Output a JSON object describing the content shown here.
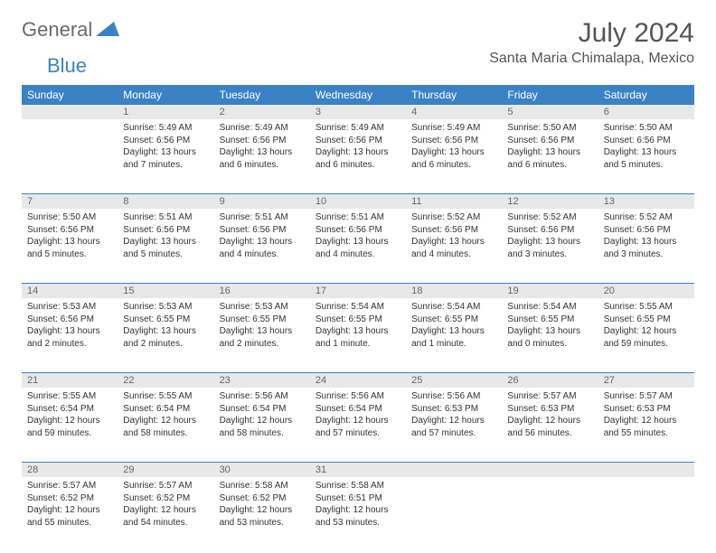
{
  "logo": {
    "text1": "General",
    "text2": "Blue"
  },
  "title": "July 2024",
  "location": "Santa Maria Chimalapa, Mexico",
  "colors": {
    "header_bg": "#3b82c4",
    "header_text": "#ffffff",
    "daynum_bg": "#e8e8e8",
    "daynum_text": "#666666",
    "body_text": "#333333",
    "logo_gray": "#6a6a6a",
    "logo_blue": "#3b82c4"
  },
  "weekdays": [
    "Sunday",
    "Monday",
    "Tuesday",
    "Wednesday",
    "Thursday",
    "Friday",
    "Saturday"
  ],
  "weeks": [
    {
      "nums": [
        "",
        "1",
        "2",
        "3",
        "4",
        "5",
        "6"
      ],
      "cells": [
        null,
        {
          "sunrise": "5:49 AM",
          "sunset": "6:56 PM",
          "daylight": "13 hours and 7 minutes."
        },
        {
          "sunrise": "5:49 AM",
          "sunset": "6:56 PM",
          "daylight": "13 hours and 6 minutes."
        },
        {
          "sunrise": "5:49 AM",
          "sunset": "6:56 PM",
          "daylight": "13 hours and 6 minutes."
        },
        {
          "sunrise": "5:49 AM",
          "sunset": "6:56 PM",
          "daylight": "13 hours and 6 minutes."
        },
        {
          "sunrise": "5:50 AM",
          "sunset": "6:56 PM",
          "daylight": "13 hours and 6 minutes."
        },
        {
          "sunrise": "5:50 AM",
          "sunset": "6:56 PM",
          "daylight": "13 hours and 5 minutes."
        }
      ]
    },
    {
      "nums": [
        "7",
        "8",
        "9",
        "10",
        "11",
        "12",
        "13"
      ],
      "cells": [
        {
          "sunrise": "5:50 AM",
          "sunset": "6:56 PM",
          "daylight": "13 hours and 5 minutes."
        },
        {
          "sunrise": "5:51 AM",
          "sunset": "6:56 PM",
          "daylight": "13 hours and 5 minutes."
        },
        {
          "sunrise": "5:51 AM",
          "sunset": "6:56 PM",
          "daylight": "13 hours and 4 minutes."
        },
        {
          "sunrise": "5:51 AM",
          "sunset": "6:56 PM",
          "daylight": "13 hours and 4 minutes."
        },
        {
          "sunrise": "5:52 AM",
          "sunset": "6:56 PM",
          "daylight": "13 hours and 4 minutes."
        },
        {
          "sunrise": "5:52 AM",
          "sunset": "6:56 PM",
          "daylight": "13 hours and 3 minutes."
        },
        {
          "sunrise": "5:52 AM",
          "sunset": "6:56 PM",
          "daylight": "13 hours and 3 minutes."
        }
      ]
    },
    {
      "nums": [
        "14",
        "15",
        "16",
        "17",
        "18",
        "19",
        "20"
      ],
      "cells": [
        {
          "sunrise": "5:53 AM",
          "sunset": "6:56 PM",
          "daylight": "13 hours and 2 minutes."
        },
        {
          "sunrise": "5:53 AM",
          "sunset": "6:55 PM",
          "daylight": "13 hours and 2 minutes."
        },
        {
          "sunrise": "5:53 AM",
          "sunset": "6:55 PM",
          "daylight": "13 hours and 2 minutes."
        },
        {
          "sunrise": "5:54 AM",
          "sunset": "6:55 PM",
          "daylight": "13 hours and 1 minute."
        },
        {
          "sunrise": "5:54 AM",
          "sunset": "6:55 PM",
          "daylight": "13 hours and 1 minute."
        },
        {
          "sunrise": "5:54 AM",
          "sunset": "6:55 PM",
          "daylight": "13 hours and 0 minutes."
        },
        {
          "sunrise": "5:55 AM",
          "sunset": "6:55 PM",
          "daylight": "12 hours and 59 minutes."
        }
      ]
    },
    {
      "nums": [
        "21",
        "22",
        "23",
        "24",
        "25",
        "26",
        "27"
      ],
      "cells": [
        {
          "sunrise": "5:55 AM",
          "sunset": "6:54 PM",
          "daylight": "12 hours and 59 minutes."
        },
        {
          "sunrise": "5:55 AM",
          "sunset": "6:54 PM",
          "daylight": "12 hours and 58 minutes."
        },
        {
          "sunrise": "5:56 AM",
          "sunset": "6:54 PM",
          "daylight": "12 hours and 58 minutes."
        },
        {
          "sunrise": "5:56 AM",
          "sunset": "6:54 PM",
          "daylight": "12 hours and 57 minutes."
        },
        {
          "sunrise": "5:56 AM",
          "sunset": "6:53 PM",
          "daylight": "12 hours and 57 minutes."
        },
        {
          "sunrise": "5:57 AM",
          "sunset": "6:53 PM",
          "daylight": "12 hours and 56 minutes."
        },
        {
          "sunrise": "5:57 AM",
          "sunset": "6:53 PM",
          "daylight": "12 hours and 55 minutes."
        }
      ]
    },
    {
      "nums": [
        "28",
        "29",
        "30",
        "31",
        "",
        "",
        ""
      ],
      "cells": [
        {
          "sunrise": "5:57 AM",
          "sunset": "6:52 PM",
          "daylight": "12 hours and 55 minutes."
        },
        {
          "sunrise": "5:57 AM",
          "sunset": "6:52 PM",
          "daylight": "12 hours and 54 minutes."
        },
        {
          "sunrise": "5:58 AM",
          "sunset": "6:52 PM",
          "daylight": "12 hours and 53 minutes."
        },
        {
          "sunrise": "5:58 AM",
          "sunset": "6:51 PM",
          "daylight": "12 hours and 53 minutes."
        },
        null,
        null,
        null
      ]
    }
  ],
  "labels": {
    "sunrise": "Sunrise:",
    "sunset": "Sunset:",
    "daylight": "Daylight:"
  }
}
